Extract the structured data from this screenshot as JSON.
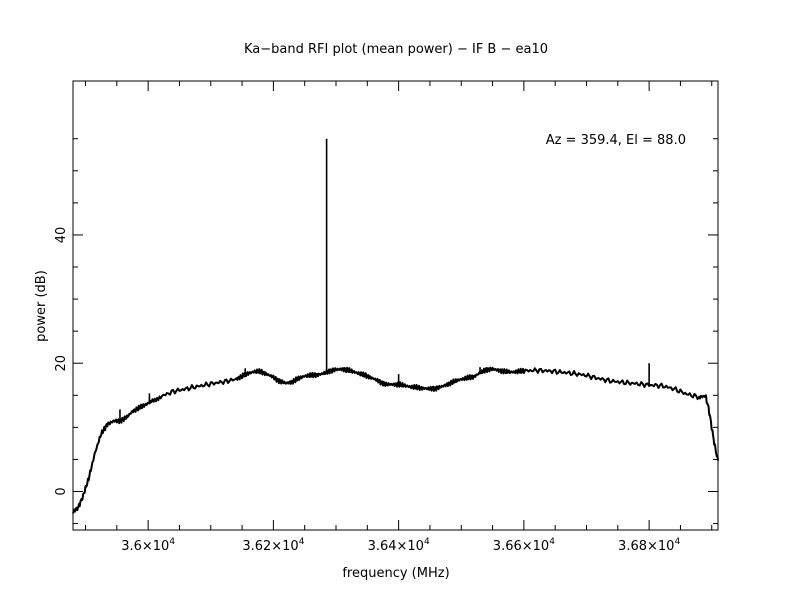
{
  "chart_data": {
    "type": "line",
    "title": "Ka−band RFI plot (mean power) − IF B − ea10",
    "xlabel": "frequency (MHz)",
    "ylabel": "power (dB)",
    "annotation": "Az = 359.4, El = 88.0",
    "xlim": [
      35880,
      36910
    ],
    "ylim": [
      -6,
      64
    ],
    "grid": false,
    "legend": "none",
    "line_color": "#000000",
    "x_ticks": [
      {
        "value": 36000,
        "label_base": "3.6×10",
        "label_exp": "4"
      },
      {
        "value": 36200,
        "label_base": "3.62×10",
        "label_exp": "4"
      },
      {
        "value": 36400,
        "label_base": "3.64×10",
        "label_exp": "4"
      },
      {
        "value": 36600,
        "label_base": "3.66×10",
        "label_exp": "4"
      },
      {
        "value": 36800,
        "label_base": "3.68×10",
        "label_exp": "4"
      }
    ],
    "y_ticks": [
      {
        "value": 0,
        "label": "0"
      },
      {
        "value": 20,
        "label": "20"
      },
      {
        "value": 40,
        "label": "40"
      }
    ],
    "series": [
      {
        "x": [
          35880,
          35888,
          35895,
          35905,
          35915,
          35925,
          35935,
          35945,
          35955,
          35965,
          35975,
          35985,
          35995,
          36005,
          36020,
          36040,
          36060,
          36080,
          36100,
          36120,
          36140,
          36150,
          36160,
          36170,
          36180,
          36190,
          36200,
          36210,
          36220,
          36230,
          36240,
          36250,
          36260,
          36270,
          36280,
          36290,
          36300,
          36310,
          36320,
          36330,
          36340,
          36350,
          36360,
          36370,
          36380,
          36390,
          36400,
          36410,
          36420,
          36430,
          36440,
          36450,
          36460,
          36470,
          36480,
          36490,
          36500,
          36510,
          36520,
          36530,
          36540,
          36550,
          36560,
          36570,
          36580,
          36590,
          36600,
          36620,
          36640,
          36660,
          36680,
          36700,
          36720,
          36740,
          36760,
          36780,
          36800,
          36820,
          36840,
          36860,
          36880,
          36890,
          36895,
          36900,
          36905,
          36910
        ],
        "y": [
          -3.2,
          -2.5,
          -1.0,
          2.0,
          6.0,
          9.0,
          10.5,
          11.0,
          11.0,
          11.5,
          12.5,
          13.0,
          13.5,
          14.0,
          14.8,
          15.6,
          16.0,
          16.4,
          16.8,
          17.1,
          17.5,
          18.0,
          18.4,
          18.7,
          18.7,
          18.3,
          17.8,
          17.2,
          16.9,
          17.1,
          17.6,
          18.0,
          18.1,
          18.2,
          18.4,
          18.8,
          19.0,
          19.1,
          18.9,
          18.6,
          18.3,
          18.0,
          17.6,
          17.1,
          16.7,
          16.7,
          16.7,
          16.5,
          16.3,
          16.2,
          16.1,
          16.0,
          16.1,
          16.4,
          16.8,
          17.2,
          17.5,
          17.7,
          17.9,
          18.5,
          19.0,
          19.1,
          18.9,
          18.7,
          18.6,
          18.7,
          18.8,
          18.9,
          18.8,
          18.6,
          18.4,
          18.1,
          17.6,
          17.2,
          17.0,
          16.8,
          16.6,
          16.5,
          16.0,
          15.2,
          14.7,
          14.9,
          13.0,
          10.0,
          7.0,
          4.8
        ]
      }
    ],
    "spikes": [
      {
        "x": 35955,
        "y": 12.8
      },
      {
        "x": 36002,
        "y": 15.3
      },
      {
        "x": 36155,
        "y": 19.2
      },
      {
        "x": 36285,
        "y": 55.0
      },
      {
        "x": 36400,
        "y": 18.3
      },
      {
        "x": 36530,
        "y": 19.4
      },
      {
        "x": 36800,
        "y": 20.0
      }
    ]
  }
}
